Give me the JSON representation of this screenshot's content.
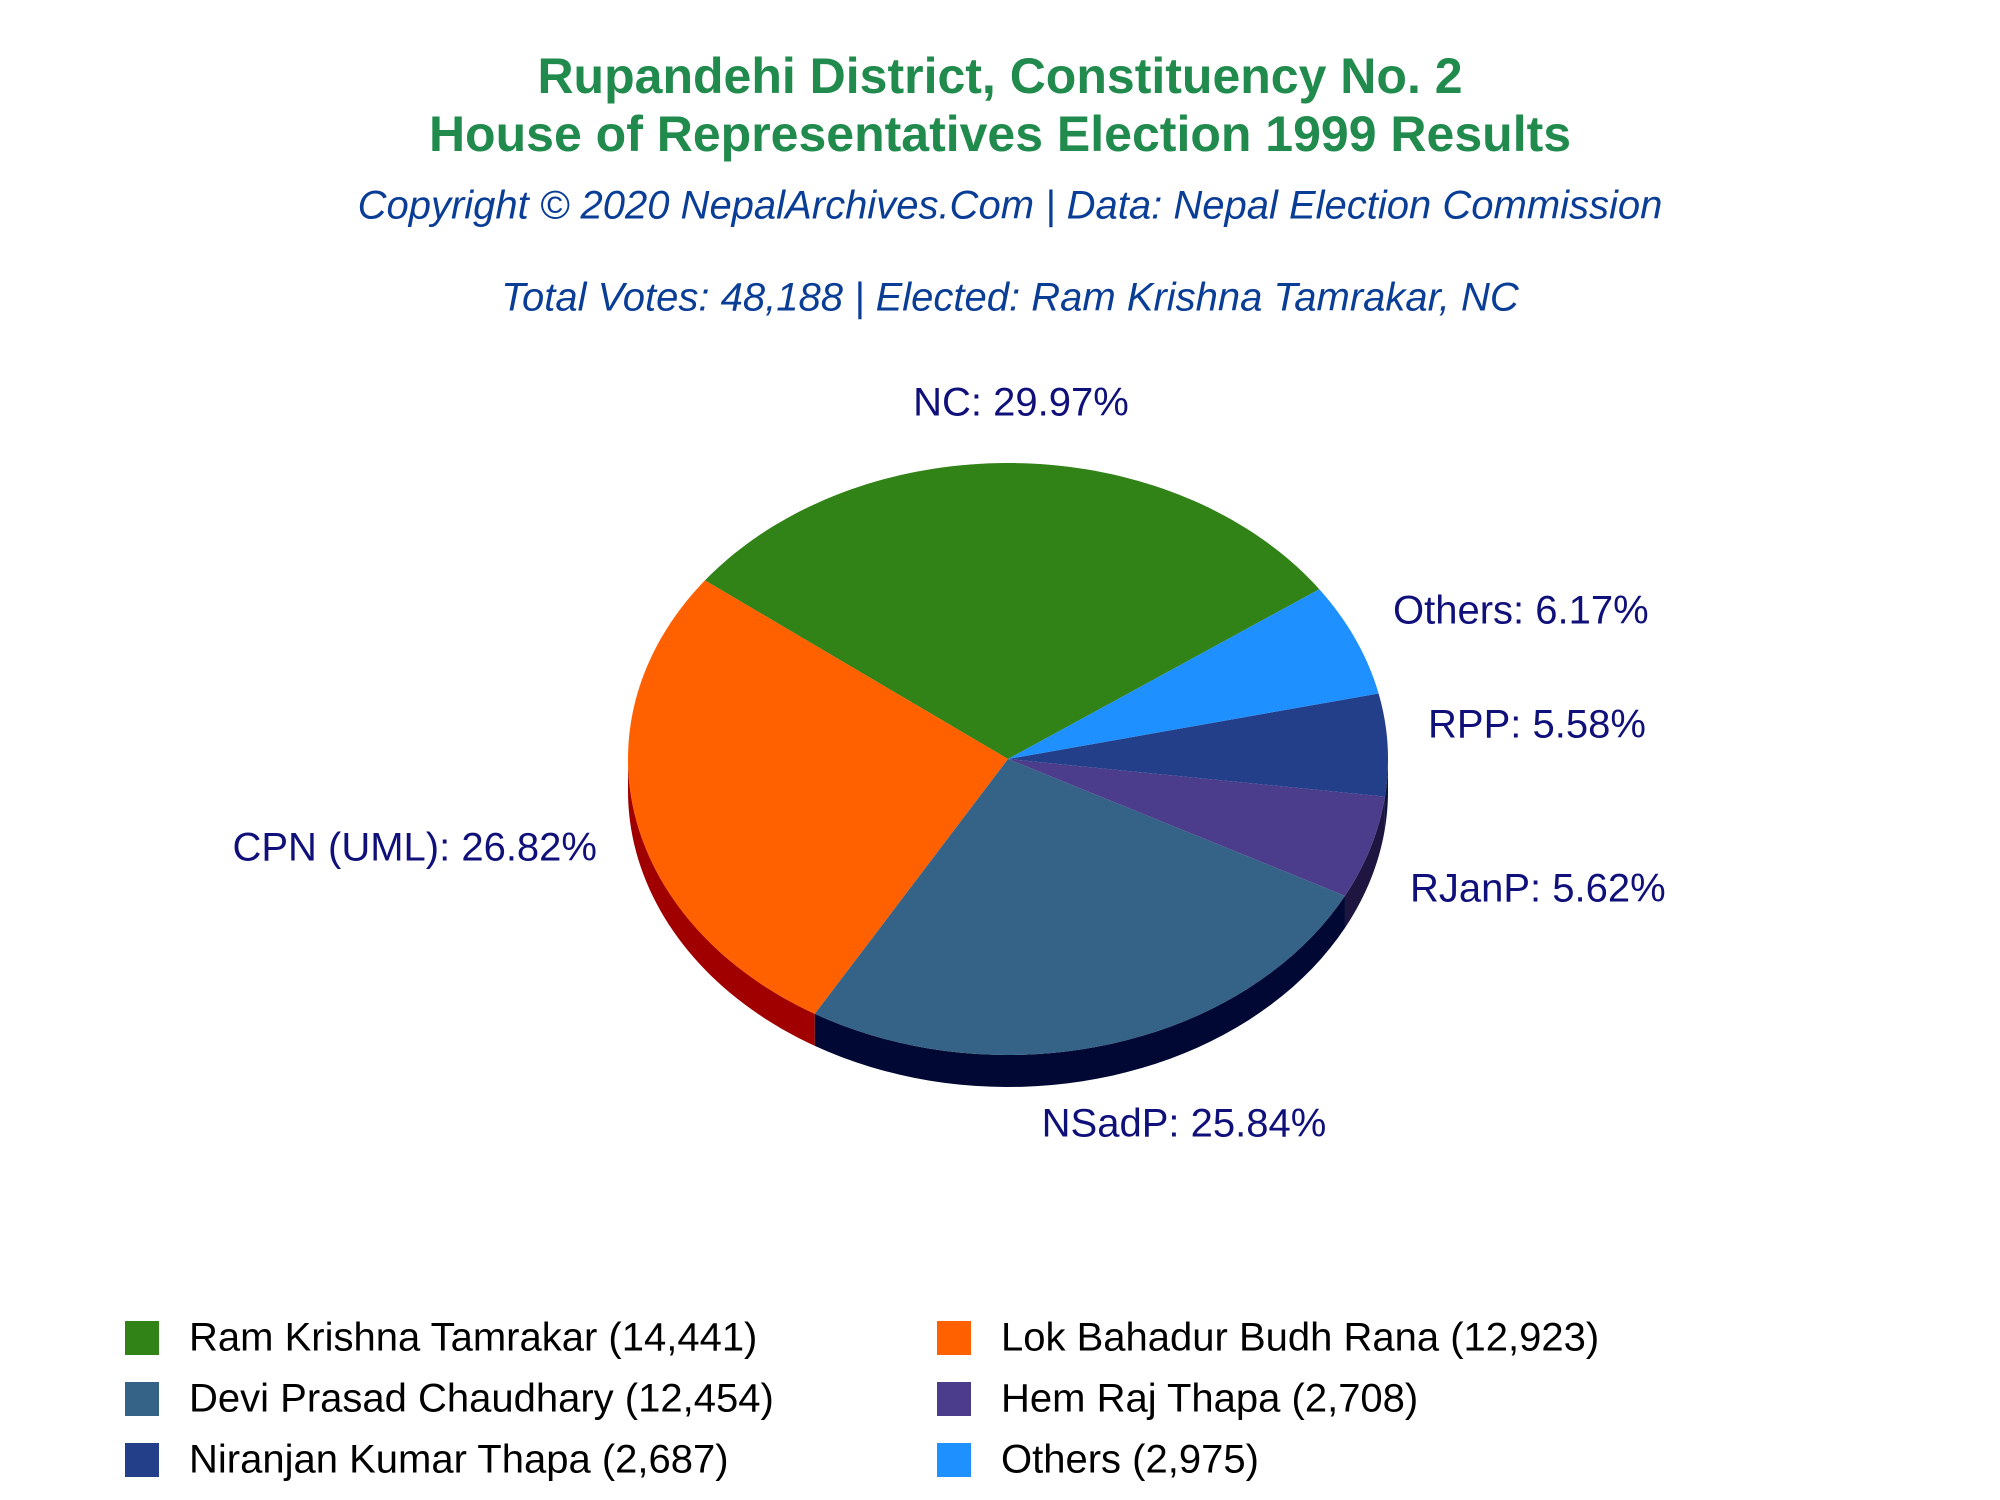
{
  "chart_data": {
    "type": "pie",
    "title_lines": [
      "Rupandehi District, Constituency No. 2",
      "House of Representatives Election 1999 Results"
    ],
    "subtitle": "Copyright © 2020 NepalArchives.Com | Data: Nepal Election Commission",
    "note": "Total Votes: 48,188 | Elected: Ram Krishna Tamrakar, NC",
    "categories": [
      "Ram Krishna Tamrakar (14,441)",
      "Lok Bahadur Budh Rana (12,923)",
      "Devi Prasad Chaudhary (12,454)",
      "Hem Raj Thapa (2,708)",
      "Niranjan Kumar Thapa (2,687)",
      "Others (2,975)"
    ],
    "values": [
      29.97,
      26.82,
      25.84,
      5.62,
      5.58,
      6.17
    ],
    "value_labels": [
      "NC: 29.97%",
      "CPN (UML): 26.82%",
      "NSadP: 25.84%",
      "RJanP: 5.62%",
      "RPP: 5.58%",
      "Others: 6.17%"
    ],
    "colors": [
      "#318217",
      "#ff6000",
      "#356387",
      "#4b3d8c",
      "#243f8a",
      "#1e90ff"
    ],
    "side_colors": [
      "#1c4a0d",
      "#a00000",
      "#000833",
      "#1e1640",
      "#0c1640",
      "#0c4a90"
    ]
  }
}
